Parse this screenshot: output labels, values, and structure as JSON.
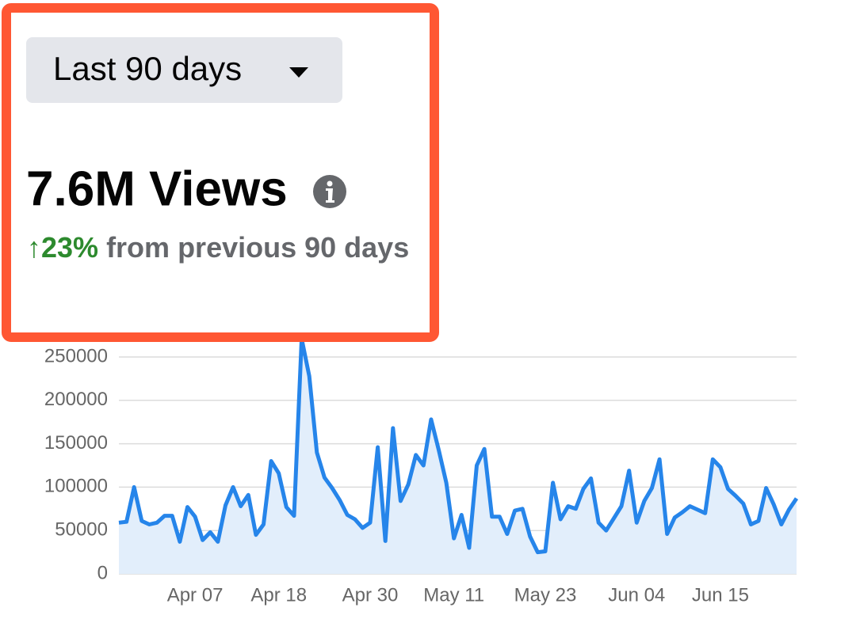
{
  "filter": {
    "label": "Last 90 days"
  },
  "headline": {
    "total": "7.6M Views",
    "change": "↑23%",
    "comparison": "from previous 90 days"
  },
  "chart_data": {
    "type": "line",
    "categories": [
      null,
      null,
      null,
      null,
      null,
      null,
      null,
      null,
      null,
      null,
      "Apr 07",
      null,
      null,
      null,
      null,
      null,
      null,
      null,
      null,
      null,
      null,
      "Apr 18",
      null,
      null,
      null,
      null,
      null,
      null,
      null,
      null,
      null,
      null,
      null,
      "Apr 30",
      null,
      null,
      null,
      null,
      null,
      null,
      null,
      null,
      null,
      null,
      "May 11",
      null,
      null,
      null,
      null,
      null,
      null,
      null,
      null,
      null,
      null,
      null,
      "May 23",
      null,
      null,
      null,
      null,
      null,
      null,
      null,
      null,
      null,
      null,
      null,
      "Jun 04",
      null,
      null,
      null,
      null,
      null,
      null,
      null,
      null,
      null,
      null,
      "Jun 15",
      null,
      null,
      null,
      null,
      null,
      null,
      null,
      null,
      null,
      null
    ],
    "values": [
      59000,
      60000,
      100000,
      61000,
      57000,
      59000,
      67000,
      67000,
      37000,
      77000,
      66000,
      39000,
      48000,
      37000,
      79000,
      100000,
      78000,
      91000,
      45000,
      57000,
      130000,
      116000,
      77000,
      67000,
      271000,
      228000,
      140000,
      111000,
      99000,
      85000,
      68000,
      63000,
      53000,
      59000,
      146000,
      38000,
      168000,
      84000,
      103000,
      137000,
      125000,
      178000,
      143000,
      105000,
      41000,
      68000,
      30000,
      125000,
      144000,
      66000,
      66000,
      46000,
      73000,
      75000,
      43000,
      25000,
      26000,
      105000,
      63000,
      78000,
      75000,
      98000,
      110000,
      59000,
      50000,
      64000,
      78000,
      119000,
      59000,
      84000,
      99000,
      132000,
      46000,
      65000,
      71000,
      78000,
      74000,
      70000,
      132000,
      123000,
      98000,
      90000,
      81000,
      57000,
      61000,
      99000,
      80000,
      57000,
      74000,
      87000
    ],
    "color": "#2685ea",
    "area_color": "#e2eefb",
    "ylim": [
      0,
      275000
    ],
    "yticks": [
      0,
      50000,
      100000,
      150000,
      200000,
      250000
    ],
    "grid": true
  }
}
